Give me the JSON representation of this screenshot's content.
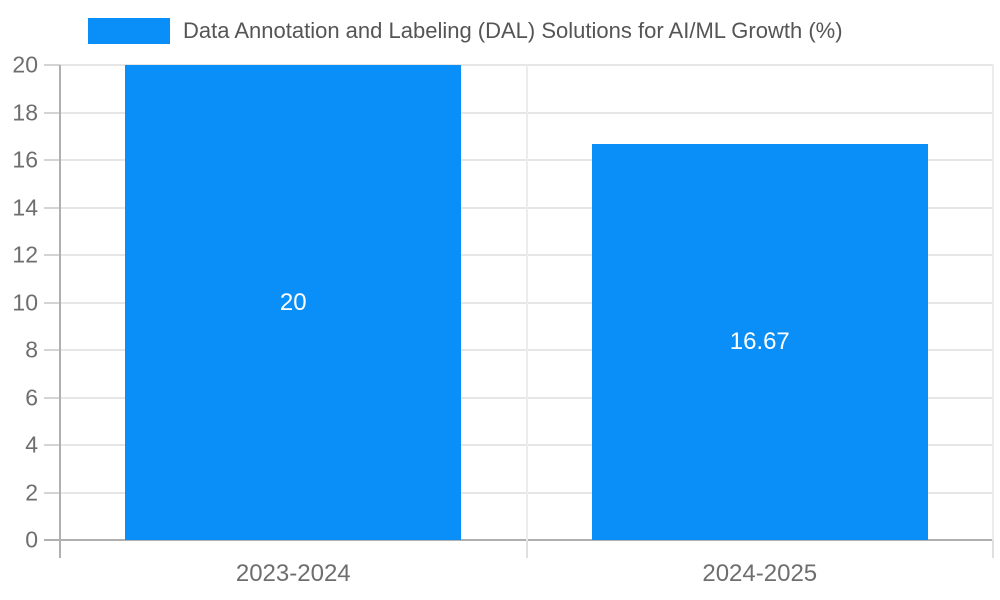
{
  "chart_data": {
    "type": "bar",
    "title": "",
    "legend": "Data Annotation and Labeling (DAL) Solutions for AI/ML Growth (%)",
    "legend_position": "top",
    "categories": [
      "2023-2024",
      "2024-2025"
    ],
    "series": [
      {
        "name": "Data Annotation and Labeling (DAL) Solutions for AI/ML Growth (%)",
        "values": [
          20,
          16.67
        ],
        "value_labels": [
          "20",
          "16.67"
        ]
      }
    ],
    "xlabel": "",
    "ylabel": "",
    "ylim": [
      0,
      20
    ],
    "ytick_step": 2,
    "yticks": [
      "0",
      "2",
      "4",
      "6",
      "8",
      "10",
      "12",
      "14",
      "16",
      "18",
      "20"
    ],
    "grid": true,
    "colors": {
      "bar": "#0a8ff8",
      "gridline": "#e6e6e6",
      "minor_tick": "#d4d4d4",
      "axis_line": "#b0b0b0",
      "tick_text": "#6e6e6e",
      "legend_text": "#555555",
      "value_text": "#ffffff"
    }
  }
}
